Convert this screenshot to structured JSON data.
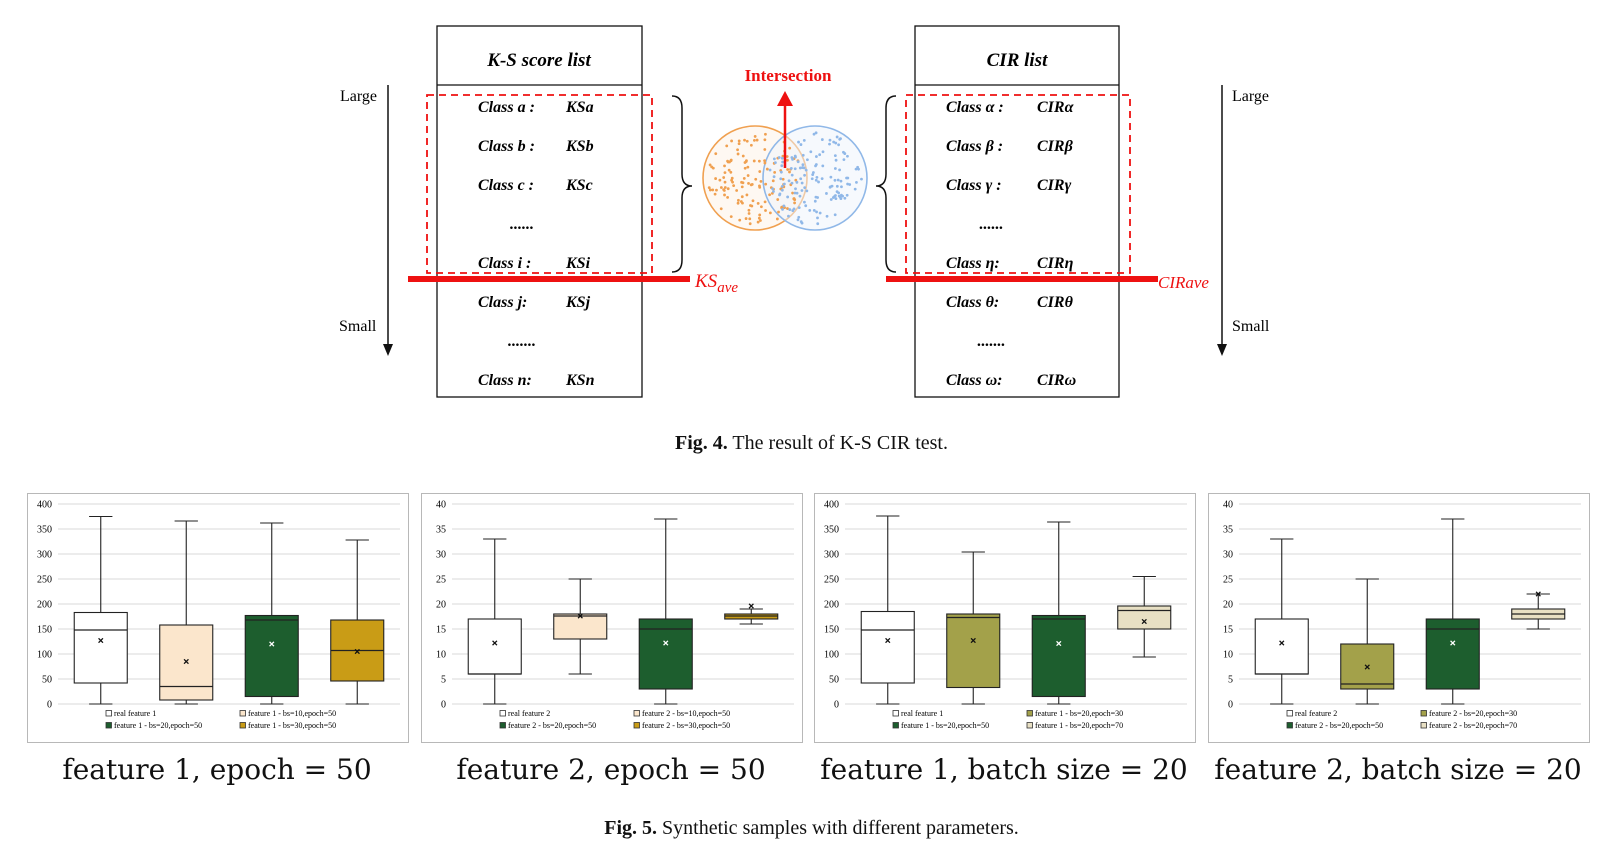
{
  "fig4": {
    "ks_header": "K-S score list",
    "cir_header": "CIR list",
    "intersection_label": "Intersection",
    "ks_ave_main": "KS",
    "ks_ave_sub": "ave",
    "cir_ave_label": "CIRave",
    "large_label": "Large",
    "small_label": "Small",
    "ks_rows": [
      {
        "cls": "Class a :",
        "val": "KSa"
      },
      {
        "cls": "Class b :",
        "val": "KSb"
      },
      {
        "cls": "Class c :",
        "val": "KSc"
      },
      {
        "cls": "......",
        "val": ""
      },
      {
        "cls": "Class i :",
        "val": "KSi"
      },
      {
        "cls": "Class j:",
        "val": "KSj"
      },
      {
        "cls": ".......",
        "val": ""
      },
      {
        "cls": "Class n:",
        "val": "KSn"
      }
    ],
    "cir_rows": [
      {
        "cls": "Class α :",
        "val": "CIRα"
      },
      {
        "cls": "Class β :",
        "val": "CIRβ"
      },
      {
        "cls": "Class γ :",
        "val": "CIRγ"
      },
      {
        "cls": "......",
        "val": ""
      },
      {
        "cls": "Class η:",
        "val": "CIRη"
      },
      {
        "cls": "Class θ:",
        "val": "CIRθ"
      },
      {
        "cls": ".......",
        "val": ""
      },
      {
        "cls": "Class ω:",
        "val": "CIRω"
      }
    ],
    "colors": {
      "red": "#ee1111",
      "orange": "#f0a050",
      "blue": "#90b8e8"
    }
  },
  "fig4_caption": {
    "label": "Fig. 4.",
    "text": " The result of K-S CIR test."
  },
  "fig5_caption": {
    "label": "Fig. 5.",
    "text": " Synthetic samples with different parameters."
  },
  "chart_data": [
    {
      "type": "box",
      "subtitle": "feature 1, epoch = 50",
      "ylim": [
        0,
        400
      ],
      "yticks": [
        0,
        50,
        100,
        150,
        200,
        250,
        300,
        350,
        400
      ],
      "grid": true,
      "legend_position": "bottom",
      "series": [
        {
          "name": "real feature 1",
          "color": "#ffffff",
          "min": 0,
          "q1": 42,
          "median": 148,
          "q3": 183,
          "max": 375,
          "mean": 127
        },
        {
          "name": "feature 1 - bs=10,epoch=50",
          "color": "#fbe6cc",
          "min": 0,
          "q1": 8,
          "median": 35,
          "q3": 158,
          "max": 366,
          "mean": 85
        },
        {
          "name": "feature 1 - bs=20,epoch=50",
          "color": "#1d5e2e",
          "min": 0,
          "q1": 15,
          "median": 168,
          "q3": 177,
          "max": 362,
          "mean": 120
        },
        {
          "name": "feature 1 - bs=30,epoch=50",
          "color": "#c99c16",
          "min": 0,
          "q1": 46,
          "median": 107,
          "q3": 168,
          "max": 328,
          "mean": 105
        }
      ]
    },
    {
      "type": "box",
      "subtitle": "feature 2, epoch = 50",
      "ylim": [
        0,
        40
      ],
      "yticks": [
        0,
        5,
        10,
        15,
        20,
        25,
        30,
        35,
        40
      ],
      "grid": true,
      "legend_position": "bottom",
      "series": [
        {
          "name": "real feature 2",
          "color": "#ffffff",
          "min": 0,
          "q1": 6,
          "median": 6,
          "q3": 17,
          "max": 33,
          "mean": 12.2
        },
        {
          "name": "feature 2 - bs=10,epoch=50",
          "color": "#fbe6cc",
          "min": 6,
          "q1": 13,
          "median": 17.6,
          "q3": 18,
          "max": 25,
          "mean": 17.6
        },
        {
          "name": "feature 2 - bs=20,epoch=50",
          "color": "#1d5e2e",
          "min": 0,
          "q1": 3,
          "median": 15,
          "q3": 17,
          "max": 37,
          "mean": 12.2
        },
        {
          "name": "feature 2 - bs=30,epoch=50",
          "color": "#c99c16",
          "min": 16,
          "q1": 17,
          "median": 17.6,
          "q3": 18,
          "max": 19,
          "mean": 19.6
        }
      ]
    },
    {
      "type": "box",
      "subtitle": "feature 1, batch size = 20",
      "ylim": [
        0,
        400
      ],
      "yticks": [
        0,
        50,
        100,
        150,
        200,
        250,
        300,
        350,
        400
      ],
      "grid": true,
      "legend_position": "bottom",
      "series": [
        {
          "name": "real feature 1",
          "color": "#ffffff",
          "min": 0,
          "q1": 42,
          "median": 148,
          "q3": 185,
          "max": 376,
          "mean": 127
        },
        {
          "name": "feature 1 - bs=20,epoch=30",
          "color": "#a3a14a",
          "min": 0,
          "q1": 33,
          "median": 173,
          "q3": 180,
          "max": 304,
          "mean": 127
        },
        {
          "name": "feature 1 - bs=20,epoch=50",
          "color": "#1d5e2e",
          "min": 0,
          "q1": 15,
          "median": 170,
          "q3": 177,
          "max": 364,
          "mean": 121
        },
        {
          "name": "feature 1 - bs=20,epoch=70",
          "color": "#e8e0c4",
          "min": 94,
          "q1": 150,
          "median": 187,
          "q3": 196,
          "max": 255,
          "mean": 165
        }
      ]
    },
    {
      "type": "box",
      "subtitle": "feature 2, batch size = 20",
      "ylim": [
        0,
        40
      ],
      "yticks": [
        0,
        5,
        10,
        15,
        20,
        25,
        30,
        35,
        40
      ],
      "grid": true,
      "legend_position": "bottom",
      "series": [
        {
          "name": "real feature 2",
          "color": "#ffffff",
          "min": 0,
          "q1": 6,
          "median": 6,
          "q3": 17,
          "max": 33,
          "mean": 12.2
        },
        {
          "name": "feature 2 - bs=20,epoch=30",
          "color": "#a3a14a",
          "min": 0,
          "q1": 3,
          "median": 4,
          "q3": 12,
          "max": 25,
          "mean": 7.4
        },
        {
          "name": "feature 2 - bs=20,epoch=50",
          "color": "#1d5e2e",
          "min": 0,
          "q1": 3,
          "median": 15,
          "q3": 17,
          "max": 37,
          "mean": 12.2
        },
        {
          "name": "feature 2 - bs=20,epoch=70",
          "color": "#e8e0c4",
          "min": 15,
          "q1": 17,
          "median": 18,
          "q3": 19,
          "max": 22,
          "mean": 22
        }
      ]
    }
  ]
}
